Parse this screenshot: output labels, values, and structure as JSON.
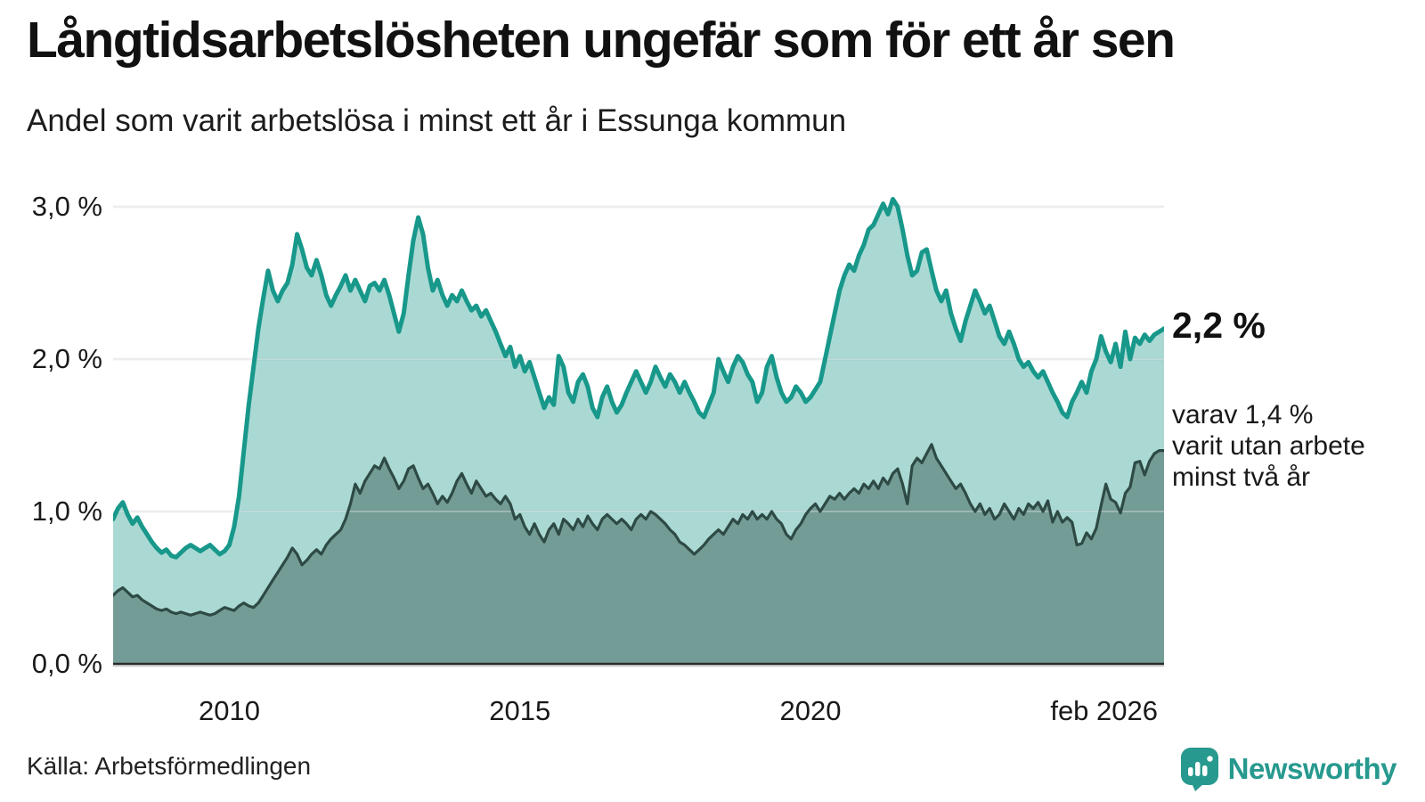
{
  "header": {
    "title": "Långtidsarbetslösheten ungefär som för ett år sen",
    "subtitle": "Andel som varit arbetslösa i minst ett år i Essunga kommun"
  },
  "footer": {
    "source": "Källa: Arbetsförmedlingen",
    "brand": "Newsworthy"
  },
  "colors": {
    "series1_stroke": "#18988a",
    "series1_fill": "rgba(24,152,138,0.37)",
    "series2_stroke": "#2e4a45",
    "series2_fill": "rgba(52,82,76,0.45)",
    "gridline": "#e2e3e6",
    "axis_line": "#2a2a2a",
    "brand_teal": "#27998e",
    "text_dark": "#111111"
  },
  "chart_data": {
    "type": "area",
    "title": "Långtidsarbetslösheten ungefär som för ett år sen",
    "subtitle": "Andel som varit arbetslösa i minst ett år i Essunga kommun",
    "x_unit": "month",
    "x_range": [
      "2008-01",
      "2026-02"
    ],
    "ylim": [
      0,
      3.2
    ],
    "grid": "horizontal",
    "y_ticks": [
      {
        "label": "3,0 %",
        "value": 3.0
      },
      {
        "label": "2,0 %",
        "value": 2.0
      },
      {
        "label": "1,0 %",
        "value": 1.0
      },
      {
        "label": "0,0 %",
        "value": 0.0
      }
    ],
    "x_ticks": [
      {
        "label": "2010",
        "month": 24
      },
      {
        "label": "2015",
        "month": 84
      },
      {
        "label": "2020",
        "month": 144
      },
      {
        "label": "feb 2026",
        "month": 217
      }
    ],
    "annotations": {
      "end_value_label": "2,2 %",
      "secondary_label_lines": [
        "varav 1,4 %",
        "varit utan arbete",
        "minst två år"
      ]
    },
    "series": [
      {
        "name": "Andel arbetslösa minst ett år",
        "end_value": "2,2 %",
        "values": [
          0.95,
          1.02,
          1.06,
          0.98,
          0.92,
          0.96,
          0.9,
          0.85,
          0.8,
          0.76,
          0.73,
          0.75,
          0.71,
          0.7,
          0.73,
          0.76,
          0.78,
          0.76,
          0.74,
          0.76,
          0.78,
          0.75,
          0.72,
          0.74,
          0.78,
          0.9,
          1.1,
          1.4,
          1.7,
          1.95,
          2.2,
          2.4,
          2.58,
          2.45,
          2.38,
          2.45,
          2.5,
          2.62,
          2.82,
          2.72,
          2.6,
          2.55,
          2.65,
          2.55,
          2.42,
          2.35,
          2.42,
          2.48,
          2.55,
          2.45,
          2.52,
          2.45,
          2.38,
          2.48,
          2.5,
          2.45,
          2.52,
          2.42,
          2.3,
          2.18,
          2.3,
          2.55,
          2.78,
          2.93,
          2.82,
          2.6,
          2.45,
          2.52,
          2.42,
          2.35,
          2.42,
          2.38,
          2.45,
          2.38,
          2.32,
          2.35,
          2.28,
          2.32,
          2.25,
          2.18,
          2.1,
          2.02,
          2.08,
          1.95,
          2.02,
          1.92,
          1.98,
          1.88,
          1.78,
          1.68,
          1.75,
          1.7,
          2.02,
          1.95,
          1.78,
          1.72,
          1.85,
          1.9,
          1.82,
          1.68,
          1.62,
          1.75,
          1.82,
          1.72,
          1.65,
          1.7,
          1.78,
          1.85,
          1.92,
          1.85,
          1.78,
          1.85,
          1.95,
          1.88,
          1.82,
          1.9,
          1.85,
          1.78,
          1.85,
          1.78,
          1.72,
          1.65,
          1.62,
          1.7,
          1.78,
          2.0,
          1.92,
          1.85,
          1.95,
          2.02,
          1.98,
          1.9,
          1.85,
          1.72,
          1.78,
          1.95,
          2.02,
          1.88,
          1.78,
          1.72,
          1.75,
          1.82,
          1.78,
          1.72,
          1.75,
          1.8,
          1.85,
          2.0,
          2.15,
          2.3,
          2.45,
          2.55,
          2.62,
          2.58,
          2.68,
          2.75,
          2.85,
          2.88,
          2.95,
          3.02,
          2.95,
          3.05,
          3.0,
          2.85,
          2.68,
          2.55,
          2.58,
          2.7,
          2.72,
          2.58,
          2.45,
          2.38,
          2.45,
          2.3,
          2.2,
          2.12,
          2.25,
          2.35,
          2.45,
          2.38,
          2.3,
          2.35,
          2.25,
          2.15,
          2.1,
          2.18,
          2.1,
          2.0,
          1.95,
          1.98,
          1.92,
          1.88,
          1.92,
          1.85,
          1.78,
          1.72,
          1.65,
          1.62,
          1.72,
          1.78,
          1.85,
          1.78,
          1.92,
          2.0,
          2.15,
          2.05,
          1.98,
          2.1,
          1.95,
          2.18,
          2.0,
          2.14,
          2.1,
          2.16,
          2.12,
          2.16,
          2.18,
          2.2
        ]
      },
      {
        "name": "Varav utan arbete minst två år",
        "end_value": "1,4 %",
        "values": [
          0.45,
          0.48,
          0.5,
          0.47,
          0.44,
          0.45,
          0.42,
          0.4,
          0.38,
          0.36,
          0.35,
          0.36,
          0.34,
          0.33,
          0.34,
          0.33,
          0.32,
          0.33,
          0.34,
          0.33,
          0.32,
          0.33,
          0.35,
          0.37,
          0.36,
          0.35,
          0.38,
          0.4,
          0.38,
          0.37,
          0.4,
          0.45,
          0.5,
          0.55,
          0.6,
          0.65,
          0.7,
          0.76,
          0.72,
          0.65,
          0.68,
          0.72,
          0.75,
          0.72,
          0.78,
          0.82,
          0.85,
          0.88,
          0.95,
          1.05,
          1.18,
          1.12,
          1.2,
          1.25,
          1.3,
          1.28,
          1.35,
          1.28,
          1.22,
          1.15,
          1.2,
          1.28,
          1.3,
          1.22,
          1.15,
          1.18,
          1.12,
          1.05,
          1.1,
          1.06,
          1.12,
          1.2,
          1.25,
          1.18,
          1.12,
          1.2,
          1.15,
          1.1,
          1.12,
          1.08,
          1.05,
          1.1,
          1.05,
          0.95,
          0.98,
          0.9,
          0.85,
          0.92,
          0.85,
          0.8,
          0.88,
          0.92,
          0.85,
          0.95,
          0.92,
          0.88,
          0.95,
          0.9,
          0.97,
          0.92,
          0.88,
          0.95,
          0.98,
          0.95,
          0.92,
          0.95,
          0.92,
          0.88,
          0.95,
          0.98,
          0.95,
          1.0,
          0.98,
          0.95,
          0.92,
          0.88,
          0.85,
          0.8,
          0.78,
          0.75,
          0.72,
          0.75,
          0.78,
          0.82,
          0.85,
          0.88,
          0.85,
          0.9,
          0.95,
          0.92,
          0.98,
          0.95,
          1.0,
          0.95,
          0.98,
          0.95,
          1.0,
          0.95,
          0.92,
          0.85,
          0.82,
          0.88,
          0.92,
          0.98,
          1.02,
          1.05,
          1.0,
          1.05,
          1.1,
          1.08,
          1.12,
          1.08,
          1.12,
          1.15,
          1.12,
          1.18,
          1.15,
          1.2,
          1.15,
          1.22,
          1.18,
          1.25,
          1.28,
          1.18,
          1.05,
          1.3,
          1.35,
          1.32,
          1.38,
          1.44,
          1.35,
          1.3,
          1.25,
          1.2,
          1.15,
          1.18,
          1.12,
          1.05,
          1.0,
          1.05,
          0.98,
          1.02,
          0.95,
          0.98,
          1.05,
          1.0,
          0.95,
          1.02,
          0.98,
          1.05,
          1.02,
          1.06,
          1.0,
          1.07,
          0.93,
          1.0,
          0.93,
          0.96,
          0.93,
          0.78,
          0.79,
          0.86,
          0.82,
          0.89,
          1.04,
          1.18,
          1.08,
          1.06,
          0.99,
          1.12,
          1.16,
          1.32,
          1.33,
          1.24,
          1.33,
          1.38,
          1.4,
          1.4
        ]
      }
    ]
  }
}
